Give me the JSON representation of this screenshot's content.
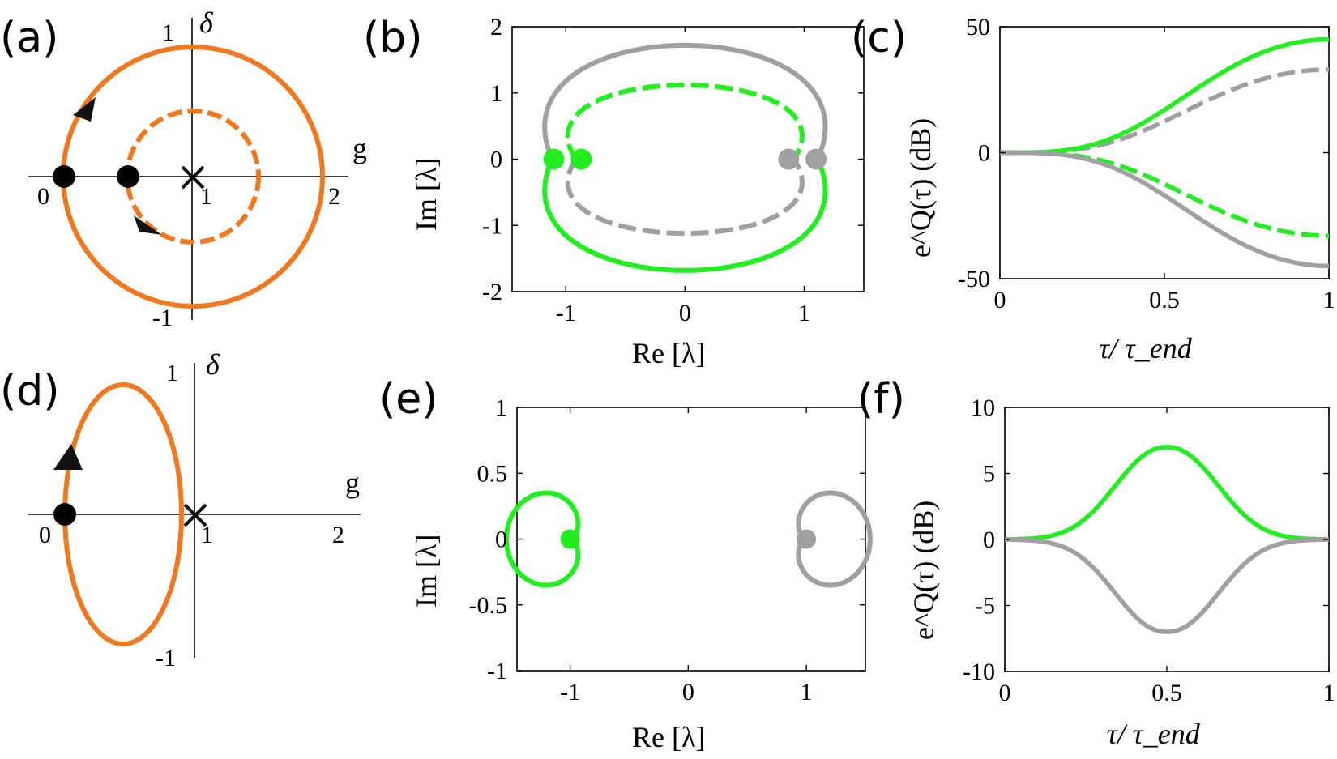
{
  "colors": {
    "orange": "#f07820",
    "green": "#22ee22",
    "gray": "#a0a0a0",
    "black": "#000000"
  },
  "panels": {
    "a": {
      "letter": "(a)"
    },
    "b": {
      "letter": "(b)"
    },
    "c": {
      "letter": "(c)"
    },
    "d": {
      "letter": "(d)"
    },
    "e": {
      "letter": "(e)"
    },
    "f": {
      "letter": "(f)"
    }
  },
  "chart_data": [
    {
      "id": "a",
      "type": "line",
      "xlabel": "g",
      "ylabel": "δ",
      "xticks": [
        "0",
        "1",
        "2"
      ],
      "yticks": [
        "1",
        "-1"
      ],
      "xlim": [
        0,
        2
      ],
      "ylim": [
        -1,
        1
      ],
      "series": [
        {
          "style": "solid",
          "shape": "circle",
          "center": [
            1,
            0
          ],
          "radius": 1,
          "color": "orange"
        },
        {
          "style": "dashed",
          "shape": "circle",
          "center": [
            1,
            0
          ],
          "radius": 0.5,
          "color": "orange"
        }
      ],
      "markers": [
        {
          "kind": "dot",
          "x": 0,
          "y": 0
        },
        {
          "kind": "dot",
          "x": 0.5,
          "y": 0
        },
        {
          "kind": "cross",
          "x": 1,
          "y": 0
        }
      ]
    },
    {
      "id": "b",
      "type": "line",
      "xlabel": "Re [λ]",
      "ylabel": "Im [λ]",
      "xticks": [
        "-1",
        "0",
        "1"
      ],
      "yticks": [
        "2",
        "1",
        "0",
        "-1",
        "-2"
      ],
      "xlim": [
        -1.45,
        1.5
      ],
      "ylim": [
        -2,
        2
      ],
      "series": [
        {
          "color": "gray",
          "style": "solid",
          "half": "upper",
          "x_endpoints": [
            -1.1,
            1.1
          ],
          "peak_y": 1.72
        },
        {
          "color": "green",
          "style": "dashed",
          "half": "upper",
          "x_endpoints": [
            -0.9,
            0.9
          ],
          "peak_y": 1.12
        },
        {
          "color": "green",
          "style": "solid",
          "half": "lower",
          "x_endpoints": [
            -1.1,
            1.1
          ],
          "peak_y": -1.68
        },
        {
          "color": "gray",
          "style": "dashed",
          "half": "lower",
          "x_endpoints": [
            -0.9,
            0.9
          ],
          "peak_y": -1.12
        }
      ],
      "markers": [
        {
          "color": "green",
          "x": -1.1,
          "y": 0
        },
        {
          "color": "green",
          "x": -0.87,
          "y": 0
        },
        {
          "color": "gray",
          "x": 0.87,
          "y": 0
        },
        {
          "color": "gray",
          "x": 1.1,
          "y": 0
        }
      ]
    },
    {
      "id": "c",
      "type": "line",
      "xlabel": "τ/ τ_end",
      "ylabel": "e^Q(τ) (dB)",
      "xticks": [
        "0",
        "0.5",
        "1"
      ],
      "yticks": [
        "50",
        "0",
        "-50"
      ],
      "xlim": [
        0,
        1
      ],
      "ylim": [
        -50,
        50
      ],
      "series": [
        {
          "color": "green",
          "style": "solid",
          "final": 45
        },
        {
          "color": "gray",
          "style": "dashed",
          "final": 33
        },
        {
          "color": "green",
          "style": "dashed",
          "final": -33
        },
        {
          "color": "gray",
          "style": "solid",
          "final": -45
        }
      ]
    },
    {
      "id": "d",
      "type": "line",
      "xlabel": "g",
      "ylabel": "δ",
      "xticks": [
        "0",
        "1",
        "2"
      ],
      "yticks": [
        "1",
        "-1"
      ],
      "xlim": [
        0,
        2
      ],
      "ylim": [
        -1,
        1
      ],
      "series": [
        {
          "color": "orange",
          "style": "solid",
          "shape": "ellipse",
          "center": [
            0.45,
            0
          ],
          "rx": 0.45,
          "ry": 1
        }
      ],
      "markers": [
        {
          "kind": "dot",
          "x": 0,
          "y": 0
        },
        {
          "kind": "cross",
          "x": 1,
          "y": 0
        }
      ]
    },
    {
      "id": "e",
      "type": "line",
      "xlabel": "Re [λ]",
      "ylabel": "Im [λ]",
      "xticks": [
        "-1",
        "0",
        "1"
      ],
      "yticks": [
        "1",
        "0.5",
        "0",
        "-0.5",
        "-1"
      ],
      "xlim": [
        -1.45,
        1.5
      ],
      "ylim": [
        -1,
        1
      ],
      "series": [
        {
          "color": "green",
          "style": "solid",
          "shape": "cardioid",
          "center": [
            -1,
            0
          ]
        },
        {
          "color": "gray",
          "style": "solid",
          "shape": "cardioid",
          "center": [
            1,
            0
          ]
        }
      ],
      "markers": [
        {
          "color": "green",
          "x": -1,
          "y": 0
        },
        {
          "color": "gray",
          "x": 1,
          "y": 0
        }
      ]
    },
    {
      "id": "f",
      "type": "line",
      "xlabel": "τ/ τ_end",
      "ylabel": "e^Q(τ) (dB)",
      "xticks": [
        "0",
        "0.5",
        "1"
      ],
      "yticks": [
        "10",
        "5",
        "0",
        "-5",
        "-10"
      ],
      "xlim": [
        0,
        1
      ],
      "ylim": [
        -10,
        10
      ],
      "series": [
        {
          "color": "green",
          "style": "solid",
          "peak_x": 0.5,
          "peak_y": 7
        },
        {
          "color": "gray",
          "style": "solid",
          "peak_x": 0.5,
          "peak_y": -7
        }
      ]
    }
  ]
}
